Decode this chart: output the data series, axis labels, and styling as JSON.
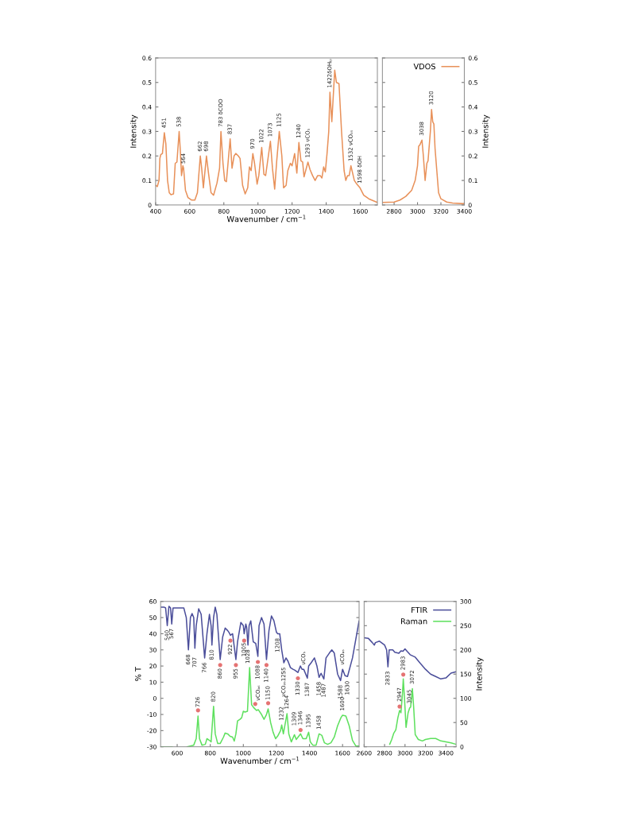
{
  "chart_data": [
    {
      "type": "line",
      "xlabel": "Wavenumber / cm$^{−1}$",
      "ylabel": "Intensity",
      "xlim": [
        400,
        1700
      ],
      "xticks": [
        400,
        600,
        800,
        1000,
        1200,
        1400,
        1600
      ],
      "ylim": [
        0,
        0.6
      ],
      "yticks": [
        0,
        0.1,
        0.2,
        0.3,
        0.4,
        0.5,
        0.6
      ],
      "grid": false,
      "legend": false,
      "series": [
        {
          "color": "#e8915a",
          "x": [
            400,
            410,
            420,
            425,
            430,
            440,
            451,
            460,
            470,
            480,
            490,
            505,
            515,
            525,
            538,
            545,
            552,
            560,
            564,
            575,
            590,
            610,
            630,
            645,
            662,
            670,
            680,
            698,
            710,
            725,
            740,
            760,
            775,
            783,
            795,
            805,
            815,
            837,
            848,
            860,
            870,
            885,
            895,
            910,
            925,
            940,
            950,
            960,
            970,
            980,
            995,
            1005,
            1022,
            1035,
            1045,
            1055,
            1073,
            1085,
            1098,
            1110,
            1125,
            1140,
            1150,
            1165,
            1175,
            1190,
            1200,
            1215,
            1228,
            1240,
            1252,
            1262,
            1270,
            1293,
            1305,
            1320,
            1335,
            1350,
            1365,
            1375,
            1385,
            1395,
            1405,
            1415,
            1422,
            1433,
            1450,
            1460,
            1475,
            1490,
            1505,
            1515,
            1525,
            1535,
            1545,
            1555,
            1565,
            1580,
            1598,
            1620,
            1650,
            1700
          ],
          "values": [
            0.08,
            0.075,
            0.1,
            0.19,
            0.205,
            0.21,
            0.295,
            0.25,
            0.1,
            0.05,
            0.042,
            0.045,
            0.17,
            0.175,
            0.3,
            0.22,
            0.12,
            0.16,
            0.15,
            0.06,
            0.03,
            0.02,
            0.02,
            0.05,
            0.2,
            0.15,
            0.07,
            0.2,
            0.13,
            0.05,
            0.04,
            0.09,
            0.15,
            0.3,
            0.17,
            0.1,
            0.095,
            0.27,
            0.15,
            0.2,
            0.21,
            0.2,
            0.19,
            0.08,
            0.045,
            0.07,
            0.155,
            0.14,
            0.21,
            0.17,
            0.085,
            0.12,
            0.235,
            0.125,
            0.12,
            0.17,
            0.26,
            0.15,
            0.065,
            0.18,
            0.3,
            0.2,
            0.07,
            0.08,
            0.14,
            0.17,
            0.16,
            0.21,
            0.13,
            0.255,
            0.18,
            0.175,
            0.115,
            0.175,
            0.145,
            0.12,
            0.1,
            0.12,
            0.12,
            0.11,
            0.155,
            0.135,
            0.21,
            0.3,
            0.46,
            0.34,
            0.55,
            0.5,
            0.495,
            0.3,
            0.14,
            0.1,
            0.12,
            0.12,
            0.16,
            0.13,
            0.1,
            0.085,
            0.07,
            0.04,
            0.025,
            0.01
          ]
        }
      ],
      "annotations": [
        {
          "text": "451",
          "x": 451,
          "y": 0.295
        },
        {
          "text": "538",
          "x": 538,
          "y": 0.3
        },
        {
          "text": "564",
          "x": 564,
          "y": 0.15
        },
        {
          "text": "662",
          "x": 662,
          "y": 0.2
        },
        {
          "text": "698",
          "x": 698,
          "y": 0.2
        },
        {
          "text": "783 δCOO",
          "x": 783,
          "y": 0.3
        },
        {
          "text": "837",
          "x": 837,
          "y": 0.27
        },
        {
          "text": "970",
          "x": 970,
          "y": 0.21
        },
        {
          "text": "1022",
          "x": 1022,
          "y": 0.235
        },
        {
          "text": "1073",
          "x": 1073,
          "y": 0.26
        },
        {
          "text": "1125",
          "x": 1125,
          "y": 0.3
        },
        {
          "text": "1240",
          "x": 1240,
          "y": 0.255
        },
        {
          "text": "1293 νCOₛ",
          "x": 1293,
          "y": 0.175
        },
        {
          "text": "1422δOHᵢₚ",
          "x": 1422,
          "y": 0.46
        },
        {
          "text": "1532 νCOₐₛ",
          "x": 1545,
          "y": 0.16
        },
        {
          "text": "1598 δOH",
          "x": 1598,
          "y": 0.07
        }
      ]
    },
    {
      "type": "line",
      "ylabel": "Intensity",
      "xlim": [
        2700,
        3400
      ],
      "xticks": [
        2800,
        3000,
        3200,
        3400
      ],
      "ylim": [
        0,
        0.6
      ],
      "yticks": [
        0,
        0.1,
        0.2,
        0.3,
        0.4,
        0.5,
        0.6
      ],
      "grid": false,
      "legend": "top right",
      "series": [
        {
          "name": "VDOS",
          "color": "#e8915a",
          "x": [
            2700,
            2800,
            2850,
            2900,
            2950,
            2980,
            3000,
            3010,
            3020,
            3038,
            3050,
            3065,
            3080,
            3090,
            3110,
            3120,
            3130,
            3140,
            3150,
            3165,
            3180,
            3200,
            3250,
            3300,
            3400
          ],
          "values": [
            0.01,
            0.012,
            0.02,
            0.035,
            0.06,
            0.1,
            0.16,
            0.24,
            0.245,
            0.265,
            0.2,
            0.1,
            0.17,
            0.18,
            0.3,
            0.39,
            0.34,
            0.33,
            0.23,
            0.14,
            0.05,
            0.025,
            0.012,
            0.008,
            0.005
          ]
        }
      ],
      "annotations": [
        {
          "text": "3038",
          "x": 3038,
          "y": 0.265
        },
        {
          "text": "3120",
          "x": 3120,
          "y": 0.39
        }
      ]
    },
    {
      "type": "line",
      "xlabel": "Wavenumber / cm$^{−1}$",
      "ylabel": "% T",
      "xlim": [
        500,
        1700
      ],
      "xticks": [
        600,
        800,
        1000,
        1200,
        1400,
        1600
      ],
      "ylim": [
        -30,
        60
      ],
      "yticks": [
        -30,
        -20,
        -10,
        0,
        10,
        20,
        30,
        40,
        50,
        60
      ],
      "grid": false,
      "legend": false,
      "series": [
        {
          "color": "#4b4e9a",
          "x": [
            500,
            520,
            530,
            540,
            550,
            560,
            567,
            575,
            600,
            640,
            655,
            668,
            680,
            690,
            700,
            707,
            715,
            730,
            745,
            766,
            780,
            795,
            805,
            810,
            820,
            830,
            840,
            860,
            875,
            890,
            905,
            915,
            922,
            935,
            955,
            965,
            985,
            1000,
            1005,
            1015,
            1020,
            1028,
            1035,
            1045,
            1060,
            1075,
            1088,
            1095,
            1110,
            1125,
            1140,
            1155,
            1170,
            1185,
            1200,
            1208,
            1220,
            1232,
            1245,
            1258,
            1270,
            1285,
            1300,
            1310,
            1330,
            1345,
            1355,
            1365,
            1387,
            1395,
            1410,
            1430,
            1445,
            1458,
            1470,
            1487,
            1500,
            1520,
            1535,
            1550,
            1570,
            1588,
            1600,
            1615,
            1630,
            1660,
            1700
          ],
          "values": [
            56.5,
            56.5,
            56,
            45,
            57,
            56,
            46,
            56,
            56,
            56,
            50,
            30,
            50,
            52.5,
            50,
            31,
            45,
            55.5,
            52,
            25,
            40,
            52,
            45,
            33,
            50,
            56.5,
            52,
            24,
            38,
            43.5,
            42,
            40.5,
            39,
            40,
            24,
            35,
            47,
            45,
            40,
            46,
            44,
            33,
            45,
            48,
            35,
            34,
            26,
            45,
            50,
            46,
            24,
            42,
            51,
            48,
            41,
            40,
            40,
            30,
            22,
            25,
            23,
            19,
            18,
            17.5,
            16,
            20,
            18,
            18,
            12.5,
            20,
            22,
            25,
            20,
            13,
            15.5,
            12,
            25,
            28,
            30,
            28,
            15,
            11,
            18,
            14,
            13.5,
            25,
            48
          ]
        },
        {
          "color": "#5ee05e",
          "x": [
            500,
            570,
            600,
            660,
            700,
            715,
            726,
            735,
            750,
            770,
            780,
            795,
            805,
            820,
            830,
            845,
            860,
            880,
            890,
            905,
            920,
            935,
            945,
            955,
            965,
            980,
            990,
            1000,
            1010,
            1025,
            1038,
            1050,
            1065,
            1080,
            1090,
            1110,
            1125,
            1140,
            1150,
            1165,
            1180,
            1195,
            1210,
            1225,
            1232,
            1242,
            1264,
            1275,
            1290,
            1309,
            1320,
            1346,
            1360,
            1380,
            1395,
            1405,
            1420,
            1440,
            1458,
            1475,
            1490,
            1510,
            1530,
            1550,
            1570,
            1590,
            1600,
            1620,
            1640,
            1660,
            1680,
            1700
          ],
          "values": [
            -30,
            -30,
            null,
            -30,
            -29,
            -25,
            -11,
            -25,
            -29,
            -28.5,
            -25,
            -26,
            -27,
            -5,
            -22,
            -28,
            -28,
            -24,
            -21.5,
            -22,
            -23.5,
            -24,
            -26.5,
            -22,
            -14,
            -13,
            -12,
            -8,
            -8.5,
            -8,
            19,
            -4,
            -6,
            -7.5,
            -7,
            -10,
            -13,
            -10,
            -6.5,
            -15,
            -21,
            -25,
            -23,
            -20,
            -16.5,
            -22,
            -9.5,
            -22,
            -27,
            -22.5,
            -25.5,
            -22,
            -25,
            -25,
            -21,
            -27,
            -29,
            -29,
            -22,
            -23,
            -27.5,
            -28.5,
            -27.5,
            -24,
            -17,
            -12,
            -10.5,
            -11,
            -17,
            -26,
            -29.5,
            -29.5
          ]
        },
        {
          "type": "scatter",
          "color": "#e57373",
          "marker": "circle",
          "x": [
            860,
            922,
            955,
            1005,
            1088,
            1140,
            1330,
            726,
            1072,
            1150,
            1346
          ],
          "values": [
            20.6,
            35.7,
            20.6,
            35.7,
            22.5,
            20.6,
            12.4,
            -7.5,
            -3.5,
            -3.0,
            -19.6
          ]
        }
      ],
      "annotations": [
        {
          "text": "540",
          "x": 540,
          "y": 45
        },
        {
          "text": "567",
          "x": 567,
          "y": 46
        },
        {
          "text": "668",
          "x": 668,
          "y": 30
        },
        {
          "text": "707",
          "x": 707,
          "y": 31
        },
        {
          "text": "766",
          "x": 766,
          "y": 25
        },
        {
          "text": "810",
          "x": 810,
          "y": 33
        },
        {
          "text": "860",
          "x": 860,
          "y": 24
        },
        {
          "text": "922",
          "x": 922,
          "y": 39
        },
        {
          "text": "955",
          "x": 955,
          "y": 24
        },
        {
          "text": "1005",
          "x": 1005,
          "y": 40
        },
        {
          "text": "1028",
          "x": 1028,
          "y": 33
        },
        {
          "text": "1088",
          "x": 1088,
          "y": 26
        },
        {
          "text": "1140",
          "x": 1140,
          "y": 24
        },
        {
          "text": "1208",
          "x": 1208,
          "y": 40
        },
        {
          "text": "νCOₐₛ1255",
          "x": 1245,
          "y": 22
        },
        {
          "text": "1330",
          "x": 1330,
          "y": 16
        },
        {
          "text": "νCOₛ",
          "x": 1365,
          "y": 18
        },
        {
          "text": "1387",
          "x": 1387,
          "y": 12.5
        },
        {
          "text": "1458",
          "x": 1458,
          "y": 13
        },
        {
          "text": "1487",
          "x": 1487,
          "y": 12
        },
        {
          "text": "1588",
          "x": 1588,
          "y": 11
        },
        {
          "text": "1630",
          "x": 1630,
          "y": 13.5
        },
        {
          "text": "νCOₐₛ",
          "x": 1600,
          "y": 18
        },
        {
          "text": "726",
          "x": 726,
          "y": -11
        },
        {
          "text": "820",
          "x": 820,
          "y": -5
        },
        {
          "text": "νCOₐₛ",
          "x": 1090,
          "y": -7
        },
        {
          "text": "1150",
          "x": 1150,
          "y": -6.5
        },
        {
          "text": "1232",
          "x": 1232,
          "y": -16.5
        },
        {
          "text": "1264",
          "x": 1264,
          "y": -9.5
        },
        {
          "text": "1309",
          "x": 1309,
          "y": -22.5
        },
        {
          "text": "1346",
          "x": 1346,
          "y": -22
        },
        {
          "text": "1395",
          "x": 1395,
          "y": -21
        },
        {
          "text": "1458",
          "x": 1458,
          "y": -22
        },
        {
          "text": "1600",
          "x": 1600,
          "y": -10.5
        }
      ]
    },
    {
      "type": "line",
      "ylabel": "Intensity",
      "xlim": [
        2600,
        3500
      ],
      "xticks": [
        2600,
        2800,
        3000,
        3200,
        3400
      ],
      "ylim": [
        0,
        300
      ],
      "yticks": [
        0,
        50,
        100,
        150,
        200,
        250,
        300
      ],
      "grid": false,
      "legend": "top right",
      "series": [
        {
          "name": "FTIR",
          "color": "#4b4e9a",
          "x": [
            2600,
            2640,
            2680,
            2700,
            2710,
            2750,
            2800,
            2820,
            2833,
            2845,
            2880,
            2900,
            2940,
            2960,
            2980,
            3000,
            3020,
            3050,
            3100,
            3150,
            3200,
            3250,
            3300,
            3350,
            3400,
            3450,
            3500
          ],
          "values": [
            225,
            224,
            215,
            210,
            215,
            218,
            210,
            200,
            165,
            200,
            200,
            195,
            193,
            198,
            197,
            202,
            197,
            190,
            185,
            172,
            160,
            150,
            145,
            140,
            142,
            152,
            155
          ]
        },
        {
          "name": "Raman",
          "color": "#5ee05e",
          "x": [
            2850,
            2870,
            2890,
            2910,
            2930,
            2947,
            2960,
            2975,
            2983,
            2995,
            3010,
            3030,
            3045,
            3055,
            3072,
            3085,
            3100,
            3130,
            3170,
            3200,
            3250,
            3300,
            3350,
            3400,
            3450,
            3500
          ],
          "values": [
            5,
            15,
            28,
            35,
            60,
            75,
            70,
            110,
            140,
            100,
            40,
            70,
            80,
            82,
            120,
            80,
            25,
            15,
            12,
            15,
            17,
            17,
            12,
            10,
            8,
            5
          ]
        },
        {
          "type": "scatter",
          "color": "#e57373",
          "marker": "circle",
          "x": [
            2947,
            2983
          ],
          "values": [
            83,
            149
          ]
        }
      ],
      "annotations": [
        {
          "text": "2833",
          "x": 2833,
          "y": 165
        },
        {
          "text": "2947",
          "x": 2947,
          "y": 75
        },
        {
          "text": "2983",
          "x": 2983,
          "y": 140
        },
        {
          "text": "3045",
          "x": 3045,
          "y": 80
        },
        {
          "text": "3072",
          "x": 3072,
          "y": 120
        }
      ]
    }
  ]
}
